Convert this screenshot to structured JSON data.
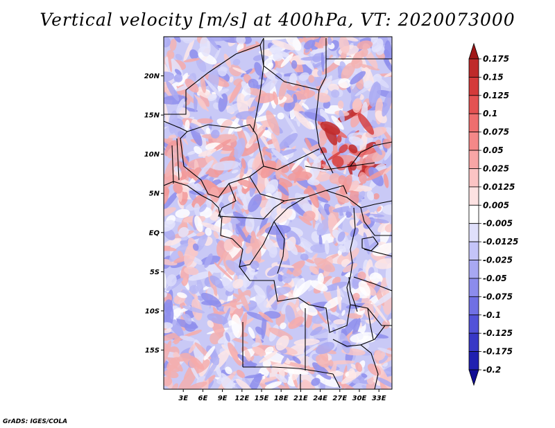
{
  "map": {
    "title": "Vertical velocity [m/s] at 400hPa, VT: 2020073000",
    "credit": "GrADS: IGES/COLA",
    "lat_labels": [
      {
        "text": "20N",
        "lat": 20
      },
      {
        "text": "15N",
        "lat": 15
      },
      {
        "text": "10N",
        "lat": 10
      },
      {
        "text": "5N",
        "lat": 5
      },
      {
        "text": "EQ",
        "lat": 0
      },
      {
        "text": "5S",
        "lat": -5
      },
      {
        "text": "10S",
        "lat": -10
      },
      {
        "text": "15S",
        "lat": -15
      }
    ],
    "lon_labels": [
      {
        "text": "3E",
        "lon": 3
      },
      {
        "text": "6E",
        "lon": 6
      },
      {
        "text": "9E",
        "lon": 9
      },
      {
        "text": "12E",
        "lon": 12
      },
      {
        "text": "15E",
        "lon": 15
      },
      {
        "text": "18E",
        "lon": 18
      },
      {
        "text": "21E",
        "lon": 21
      },
      {
        "text": "24E",
        "lon": 24
      },
      {
        "text": "27E",
        "lon": 27
      },
      {
        "text": "30E",
        "lon": 30
      },
      {
        "text": "33E",
        "lon": 33
      }
    ],
    "extent": {
      "lon_min": 0,
      "lon_max": 35,
      "lat_min": -20,
      "lat_max": 25
    }
  },
  "colorbar": {
    "levels": [
      "0.175",
      "0.15",
      "0.125",
      "0.1",
      "0.075",
      "0.05",
      "0.025",
      "0.0125",
      "0.005",
      "-0.005",
      "-0.0125",
      "-0.025",
      "-0.05",
      "-0.075",
      "-0.1",
      "-0.125",
      "-0.175",
      "-0.2"
    ],
    "colors": [
      "#a01818",
      "#bf2a2a",
      "#d43a3a",
      "#e45252",
      "#ee6e6e",
      "#f48888",
      "#f8a6a6",
      "#fbc4c4",
      "#fde2e2",
      "#ffffff",
      "#e0e0fb",
      "#c4c4f8",
      "#a8a8f2",
      "#8c8cec",
      "#7070e4",
      "#5252d8",
      "#3838c6",
      "#2020b0",
      "#100c94"
    ]
  }
}
